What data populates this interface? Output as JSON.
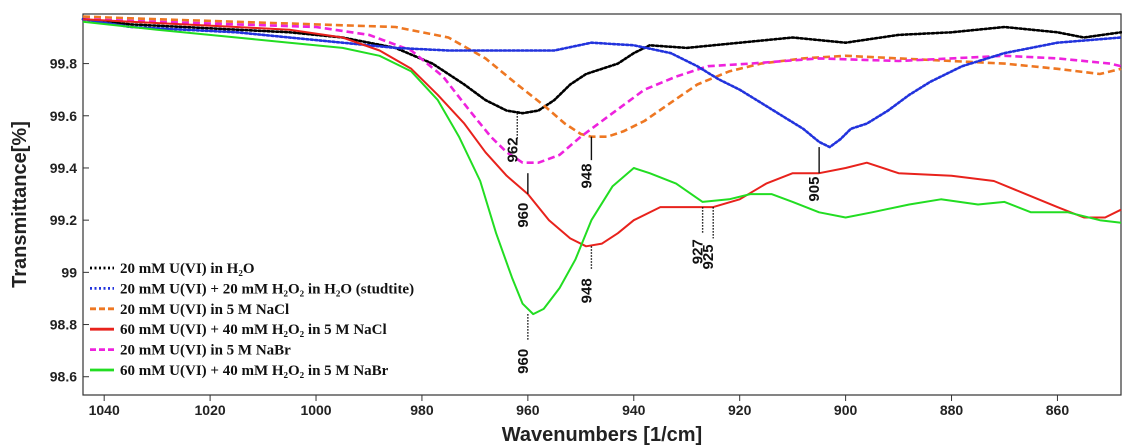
{
  "chart_data": {
    "type": "line",
    "xlabel": "Wavenumbers [1/cm]",
    "ylabel": "Transmittance[%]",
    "xlim": [
      1044,
      848
    ],
    "ylim": [
      98.53,
      99.99
    ],
    "x_reversed": true,
    "x_ticks": [
      1040,
      1020,
      1000,
      980,
      960,
      940,
      920,
      900,
      880,
      860
    ],
    "y_ticks": [
      98.6,
      98.8,
      99,
      99.2,
      99.4,
      99.6,
      99.8
    ],
    "y_tick_labels": [
      "98.6",
      "98.8",
      "99",
      "99.2",
      "99.4",
      "99.6",
      "99.8"
    ],
    "grid": false,
    "legend_position": "bottom-left",
    "series": [
      {
        "name": "20 mM U(VI) in H₂O",
        "color": "#000000",
        "style": "dotted",
        "points": [
          [
            1044,
            99.97
          ],
          [
            1035,
            99.95
          ],
          [
            1025,
            99.94
          ],
          [
            1015,
            99.93
          ],
          [
            1005,
            99.92
          ],
          [
            995,
            99.9
          ],
          [
            985,
            99.86
          ],
          [
            978,
            99.8
          ],
          [
            972,
            99.72
          ],
          [
            968,
            99.66
          ],
          [
            964,
            99.62
          ],
          [
            961,
            99.61
          ],
          [
            958,
            99.62
          ],
          [
            955,
            99.66
          ],
          [
            952,
            99.72
          ],
          [
            949,
            99.76
          ],
          [
            946,
            99.78
          ],
          [
            943,
            99.8
          ],
          [
            940,
            99.84
          ],
          [
            937,
            99.87
          ],
          [
            930,
            99.86
          ],
          [
            920,
            99.88
          ],
          [
            910,
            99.9
          ],
          [
            900,
            99.88
          ],
          [
            890,
            99.91
          ],
          [
            880,
            99.92
          ],
          [
            870,
            99.94
          ],
          [
            860,
            99.92
          ],
          [
            855,
            99.9
          ],
          [
            848,
            99.92
          ]
        ]
      },
      {
        "name": "20 mM U(VI) + 20 mM H₂O₂ in H₂O (studtite)",
        "color": "#2233dd",
        "style": "dotted",
        "points": [
          [
            1044,
            99.97
          ],
          [
            1035,
            99.94
          ],
          [
            1025,
            99.93
          ],
          [
            1015,
            99.92
          ],
          [
            1005,
            99.9
          ],
          [
            995,
            99.88
          ],
          [
            985,
            99.86
          ],
          [
            975,
            99.85
          ],
          [
            965,
            99.85
          ],
          [
            955,
            99.85
          ],
          [
            948,
            99.88
          ],
          [
            940,
            99.87
          ],
          [
            933,
            99.84
          ],
          [
            928,
            99.79
          ],
          [
            924,
            99.74
          ],
          [
            920,
            99.7
          ],
          [
            916,
            99.65
          ],
          [
            912,
            99.6
          ],
          [
            908,
            99.55
          ],
          [
            905,
            99.5
          ],
          [
            903,
            99.48
          ],
          [
            901,
            99.51
          ],
          [
            899,
            99.55
          ],
          [
            896,
            99.57
          ],
          [
            892,
            99.62
          ],
          [
            888,
            99.68
          ],
          [
            884,
            99.73
          ],
          [
            878,
            99.79
          ],
          [
            870,
            99.84
          ],
          [
            860,
            99.88
          ],
          [
            848,
            99.9
          ]
        ]
      },
      {
        "name": "20 mM U(VI) in 5 M NaCl",
        "color": "#ee7722",
        "style": "dashed",
        "points": [
          [
            1044,
            99.98
          ],
          [
            1030,
            99.97
          ],
          [
            1015,
            99.96
          ],
          [
            1000,
            99.95
          ],
          [
            985,
            99.94
          ],
          [
            975,
            99.9
          ],
          [
            968,
            99.82
          ],
          [
            962,
            99.72
          ],
          [
            957,
            99.64
          ],
          [
            953,
            99.57
          ],
          [
            950,
            99.53
          ],
          [
            948,
            99.52
          ],
          [
            945,
            99.52
          ],
          [
            942,
            99.54
          ],
          [
            938,
            99.58
          ],
          [
            933,
            99.65
          ],
          [
            928,
            99.72
          ],
          [
            922,
            99.77
          ],
          [
            916,
            99.8
          ],
          [
            908,
            99.82
          ],
          [
            900,
            99.83
          ],
          [
            890,
            99.82
          ],
          [
            880,
            99.81
          ],
          [
            870,
            99.8
          ],
          [
            860,
            99.78
          ],
          [
            852,
            99.76
          ],
          [
            848,
            99.78
          ]
        ]
      },
      {
        "name": "60 mM U(VI) + 40 mM H₂O₂ in 5 M NaCl",
        "color": "#e8221c",
        "style": "solid",
        "points": [
          [
            1044,
            99.97
          ],
          [
            1035,
            99.96
          ],
          [
            1025,
            99.95
          ],
          [
            1015,
            99.94
          ],
          [
            1005,
            99.93
          ],
          [
            995,
            99.9
          ],
          [
            988,
            99.85
          ],
          [
            982,
            99.78
          ],
          [
            977,
            99.68
          ],
          [
            972,
            99.57
          ],
          [
            968,
            99.46
          ],
          [
            964,
            99.37
          ],
          [
            960,
            99.3
          ],
          [
            956,
            99.2
          ],
          [
            952,
            99.13
          ],
          [
            949,
            99.1
          ],
          [
            946,
            99.11
          ],
          [
            943,
            99.15
          ],
          [
            940,
            99.2
          ],
          [
            935,
            99.25
          ],
          [
            930,
            99.25
          ],
          [
            925,
            99.25
          ],
          [
            920,
            99.28
          ],
          [
            915,
            99.34
          ],
          [
            910,
            99.38
          ],
          [
            905,
            99.38
          ],
          [
            900,
            99.4
          ],
          [
            896,
            99.42
          ],
          [
            890,
            99.38
          ],
          [
            880,
            99.37
          ],
          [
            872,
            99.35
          ],
          [
            866,
            99.3
          ],
          [
            860,
            99.25
          ],
          [
            855,
            99.21
          ],
          [
            851,
            99.21
          ],
          [
            848,
            99.24
          ]
        ]
      },
      {
        "name": "20 mM U(VI) in 5 M NaBr",
        "color": "#ee22dd",
        "style": "dashed",
        "points": [
          [
            1044,
            99.97
          ],
          [
            1030,
            99.96
          ],
          [
            1015,
            99.95
          ],
          [
            1000,
            99.94
          ],
          [
            990,
            99.91
          ],
          [
            982,
            99.85
          ],
          [
            976,
            99.75
          ],
          [
            971,
            99.62
          ],
          [
            967,
            99.52
          ],
          [
            964,
            99.46
          ],
          [
            961,
            99.42
          ],
          [
            958,
            99.42
          ],
          [
            954,
            99.45
          ],
          [
            950,
            99.52
          ],
          [
            946,
            99.58
          ],
          [
            942,
            99.64
          ],
          [
            938,
            99.7
          ],
          [
            932,
            99.75
          ],
          [
            926,
            99.79
          ],
          [
            918,
            99.8
          ],
          [
            905,
            99.82
          ],
          [
            890,
            99.81
          ],
          [
            880,
            99.82
          ],
          [
            870,
            99.83
          ],
          [
            860,
            99.82
          ],
          [
            850,
            99.8
          ],
          [
            848,
            99.79
          ]
        ]
      },
      {
        "name": "60 mM U(VI) + 40 mM H₂O₂ in 5 M NaBr",
        "color": "#22dd22",
        "style": "solid",
        "points": [
          [
            1044,
            99.96
          ],
          [
            1030,
            99.93
          ],
          [
            1015,
            99.9
          ],
          [
            1005,
            99.88
          ],
          [
            995,
            99.86
          ],
          [
            988,
            99.83
          ],
          [
            982,
            99.77
          ],
          [
            977,
            99.66
          ],
          [
            973,
            99.52
          ],
          [
            969,
            99.35
          ],
          [
            966,
            99.15
          ],
          [
            963,
            98.98
          ],
          [
            961,
            98.88
          ],
          [
            959,
            98.84
          ],
          [
            957,
            98.86
          ],
          [
            954,
            98.94
          ],
          [
            951,
            99.05
          ],
          [
            948,
            99.2
          ],
          [
            944,
            99.33
          ],
          [
            940,
            99.4
          ],
          [
            937,
            99.38
          ],
          [
            932,
            99.34
          ],
          [
            927,
            99.27
          ],
          [
            922,
            99.28
          ],
          [
            918,
            99.3
          ],
          [
            914,
            99.3
          ],
          [
            910,
            99.27
          ],
          [
            905,
            99.23
          ],
          [
            900,
            99.21
          ],
          [
            895,
            99.23
          ],
          [
            888,
            99.26
          ],
          [
            882,
            99.28
          ],
          [
            875,
            99.26
          ],
          [
            870,
            99.27
          ],
          [
            865,
            99.23
          ],
          [
            858,
            99.23
          ],
          [
            852,
            99.2
          ],
          [
            848,
            99.19
          ]
        ]
      }
    ],
    "annotations": [
      {
        "label": "962",
        "x": 962,
        "y_start": 99.61,
        "y_end": 99.51,
        "text_y": 99.45,
        "style": "dotted"
      },
      {
        "label": "948",
        "x": 948,
        "y_start": 99.52,
        "y_end": 99.43,
        "text_y": 99.35,
        "style": "solid"
      },
      {
        "label": "960",
        "x": 960,
        "y_start": 99.3,
        "y_end": 99.38,
        "text_y": 99.2,
        "style": "solid"
      },
      {
        "label": "905",
        "x": 905,
        "y_start": 99.48,
        "y_end": 99.38,
        "text_y": 99.3,
        "style": "solid"
      },
      {
        "label": "948",
        "x": 948,
        "y_start": 99.1,
        "y_end": 99.01,
        "text_y": 98.91,
        "style": "dotted"
      },
      {
        "label": "927",
        "x": 927,
        "y_start": 99.25,
        "y_end": 99.15,
        "text_y": 99.06,
        "style": "dotted"
      },
      {
        "label": "925",
        "x": 925,
        "y_start": 99.25,
        "y_end": 99.13,
        "text_y": 99.04,
        "style": "dotted"
      },
      {
        "label": "960",
        "x": 960,
        "y_start": 98.84,
        "y_end": 98.74,
        "text_y": 98.64,
        "style": "dotted"
      }
    ]
  }
}
